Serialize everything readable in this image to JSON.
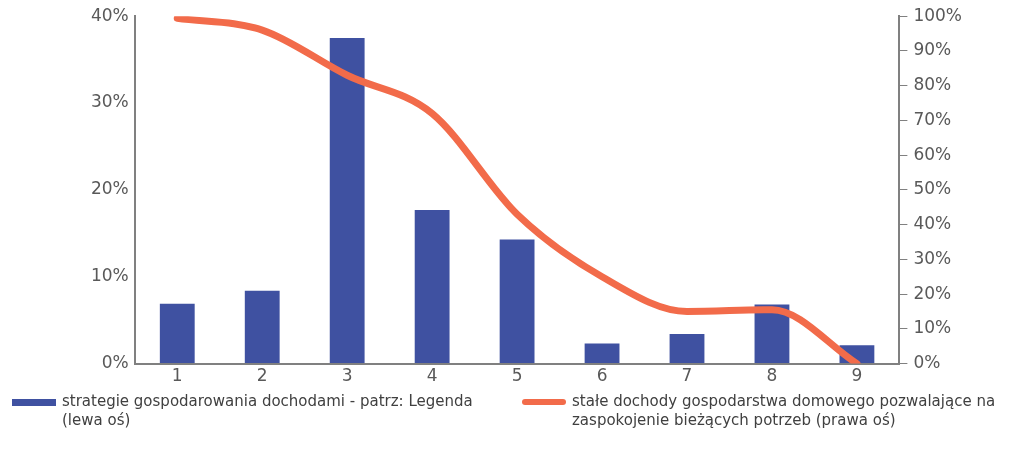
{
  "chart_data": {
    "type": "bar",
    "categories": [
      "1",
      "2",
      "3",
      "4",
      "5",
      "6",
      "7",
      "8",
      "9"
    ],
    "series": [
      {
        "name": "strategie gospodarowania dochodami - patrz: Legenda (lewa oś)",
        "color": "#3f51a1",
        "values": [
          6.9,
          8.4,
          37.5,
          17.7,
          14.3,
          2.3,
          3.4,
          6.8,
          2.1
        ]
      },
      {
        "name": "stałe dochody gospodarstwa domowego pozwalające na zaspokojenie bieżących potrzeb (prawa oś)",
        "type": "line",
        "axis": "y2",
        "color": "#f26b4a",
        "values": [
          99.4,
          96,
          83,
          72,
          43,
          25,
          15,
          15.5,
          0
        ]
      }
    ],
    "ylim": [
      0,
      40
    ],
    "yticks": [
      {
        "value": 0,
        "label": "0%"
      },
      {
        "value": 10,
        "label": "10%"
      },
      {
        "value": 20,
        "label": "20%"
      },
      {
        "value": 30,
        "label": "30%"
      },
      {
        "value": 40,
        "label": "40%"
      }
    ],
    "y2lim": [
      0,
      100
    ],
    "y2ticks": [
      {
        "value": 0,
        "label": "0%"
      },
      {
        "value": 10,
        "label": "10%"
      },
      {
        "value": 20,
        "label": "20%"
      },
      {
        "value": 30,
        "label": "30%"
      },
      {
        "value": 40,
        "label": "40%"
      },
      {
        "value": 50,
        "label": "50%"
      },
      {
        "value": 60,
        "label": "60%"
      },
      {
        "value": 70,
        "label": "70%"
      },
      {
        "value": 80,
        "label": "80%"
      },
      {
        "value": 90,
        "label": "90%"
      },
      {
        "value": 100,
        "label": "100%"
      }
    ],
    "grid": false,
    "legend": "bottom",
    "marker": "none"
  }
}
